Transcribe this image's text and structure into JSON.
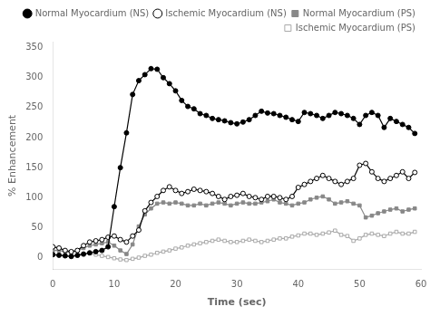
{
  "chart_data": {
    "type": "line",
    "xlabel": "Time (sec)",
    "ylabel": "% Enhancement",
    "xlim": [
      0,
      60
    ],
    "ylim": [
      -20,
      360
    ],
    "xticks": [
      0,
      10,
      20,
      30,
      40,
      50,
      60
    ],
    "yticks": [
      0,
      50,
      100,
      150,
      200,
      250,
      300,
      350
    ],
    "grid": false,
    "legend": "upper right",
    "x": [
      0,
      1,
      2,
      3,
      4,
      5,
      6,
      7,
      8,
      9,
      10,
      11,
      12,
      13,
      14,
      15,
      16,
      17,
      18,
      19,
      20,
      21,
      22,
      23,
      24,
      25,
      26,
      27,
      28,
      29,
      30,
      31,
      32,
      33,
      34,
      35,
      36,
      37,
      38,
      39,
      40,
      41,
      42,
      43,
      44,
      45,
      46,
      47,
      48,
      49,
      50,
      51,
      52,
      53,
      54,
      55,
      56,
      57,
      58,
      59
    ],
    "series": [
      {
        "name": "Normal Myocardium (NS)",
        "color": "#000000",
        "marker": "circle",
        "line_style": "solid",
        "values": [
          5,
          4,
          3,
          2,
          4,
          6,
          8,
          10,
          12,
          18,
          85,
          150,
          208,
          272,
          295,
          305,
          315,
          314,
          300,
          290,
          278,
          262,
          252,
          248,
          240,
          237,
          232,
          230,
          228,
          225,
          223,
          226,
          230,
          237,
          244,
          241,
          240,
          237,
          234,
          230,
          227,
          242,
          240,
          237,
          232,
          237,
          242,
          240,
          237,
          232,
          222,
          237,
          242,
          237,
          217,
          232,
          227,
          222,
          217,
          207
        ]
      },
      {
        "name": "Ischemic Myocardium (NS)",
        "color": "#000000",
        "marker": "open_circle",
        "line_style": "solid",
        "values": [
          18,
          16,
          12,
          10,
          12,
          20,
          26,
          28,
          30,
          34,
          36,
          30,
          26,
          36,
          46,
          78,
          92,
          102,
          112,
          118,
          112,
          107,
          110,
          114,
          112,
          110,
          107,
          102,
          97,
          102,
          104,
          107,
          102,
          100,
          97,
          102,
          102,
          100,
          97,
          102,
          117,
          122,
          127,
          132,
          137,
          132,
          127,
          122,
          127,
          132,
          154,
          157,
          143,
          132,
          127,
          132,
          137,
          143,
          132,
          142
        ]
      },
      {
        "name": "Normal Myocardium (PS)",
        "color": "#888888",
        "marker": "square",
        "line_style": "solid",
        "values": [
          12,
          12,
          10,
          8,
          12,
          16,
          20,
          22,
          24,
          26,
          20,
          12,
          6,
          22,
          52,
          72,
          82,
          90,
          92,
          90,
          92,
          90,
          87,
          87,
          90,
          87,
          90,
          92,
          90,
          87,
          90,
          92,
          90,
          90,
          92,
          94,
          97,
          92,
          90,
          87,
          90,
          92,
          97,
          100,
          102,
          97,
          90,
          92,
          94,
          90,
          87,
          67,
          70,
          74,
          77,
          80,
          82,
          77,
          80,
          82
        ]
      },
      {
        "name": "Ischemic Myocardium (PS)",
        "color": "#aaaaaa",
        "marker": "open_square",
        "line_style": "solid",
        "values": [
          5,
          5,
          3,
          2,
          3,
          5,
          7,
          5,
          3,
          1,
          -1,
          -3,
          -4,
          -2,
          0,
          3,
          5,
          8,
          10,
          12,
          15,
          17,
          20,
          22,
          24,
          26,
          28,
          30,
          28,
          26,
          26,
          28,
          30,
          28,
          26,
          28,
          30,
          32,
          32,
          35,
          37,
          40,
          40,
          38,
          40,
          42,
          45,
          38,
          36,
          28,
          32,
          38,
          40,
          38,
          36,
          40,
          43,
          40,
          40,
          43
        ]
      }
    ]
  }
}
